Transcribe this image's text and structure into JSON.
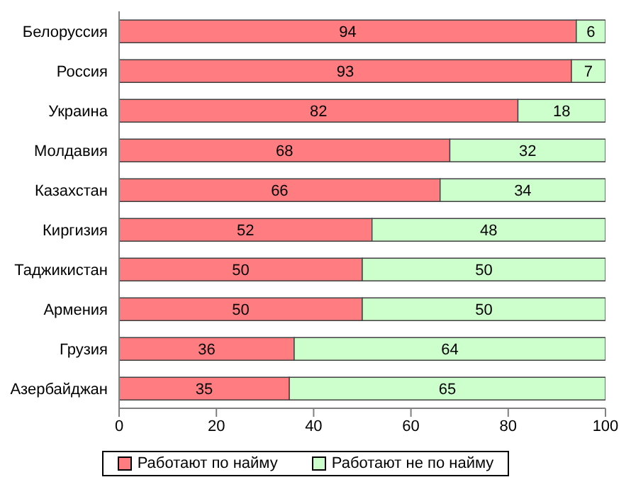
{
  "chart_data": {
    "type": "bar",
    "orientation": "horizontal",
    "stacked": true,
    "categories": [
      "Белоруссия",
      "Россия",
      "Украина",
      "Молдавия",
      "Казахстан",
      "Киргизия",
      "Таджикистан",
      "Армения",
      "Грузия",
      "Азербайджан"
    ],
    "series": [
      {
        "name": "Работают по найму",
        "color": "#ff7c80",
        "values": [
          94,
          93,
          82,
          68,
          66,
          52,
          50,
          50,
          36,
          35
        ]
      },
      {
        "name": "Работают не по найму",
        "color": "#ccffcc",
        "values": [
          6,
          7,
          18,
          32,
          34,
          48,
          50,
          50,
          64,
          65
        ]
      }
    ],
    "xlim": [
      0,
      100
    ],
    "xticks": [
      0,
      20,
      40,
      60,
      80,
      100
    ],
    "data_labels": true,
    "legend": "bottom",
    "grid": false
  }
}
